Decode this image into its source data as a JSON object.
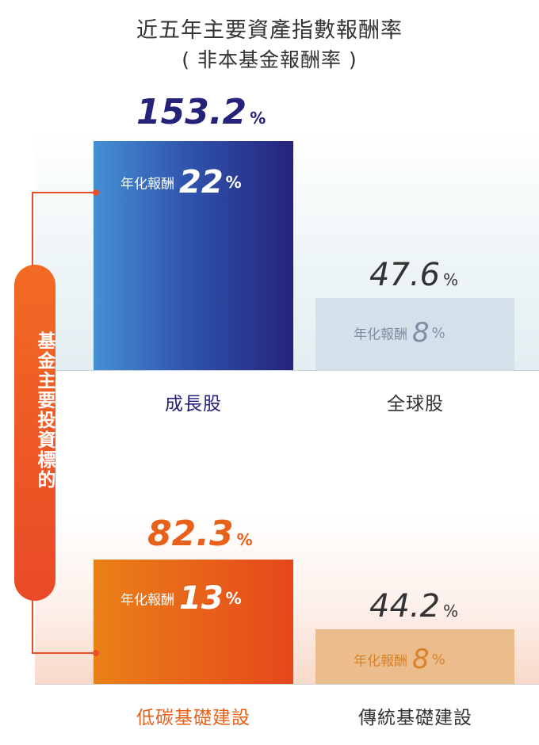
{
  "title": "近五年主要資產指數報酬率",
  "subtitle": "( 非本基金報酬率 )",
  "side_label": "基金主要投資標的",
  "annual_label": "年化報酬",
  "percent_sign": "%",
  "colors": {
    "navy": "#25227a",
    "orange": "#e8611a",
    "gray": "#333333",
    "slate": "#7d8fa5",
    "amber": "#d88228"
  },
  "chart_data": {
    "type": "bar",
    "categories": [
      "成長股",
      "全球股",
      "低碳基礎建設",
      "傳統基礎建設"
    ],
    "series": [
      {
        "values": [
          153.2,
          47.6,
          82.3,
          44.2
        ]
      },
      {
        "name": "年化報酬",
        "values": [
          22,
          8,
          13,
          8
        ]
      }
    ],
    "groups": [
      {
        "categories": [
          "成長股",
          "全球股"
        ],
        "total_return": [
          "153.2",
          "47.6"
        ],
        "annual_return": [
          "22",
          "8"
        ]
      },
      {
        "categories": [
          "低碳基礎建設",
          "傳統基礎建設"
        ],
        "total_return": [
          "82.3",
          "44.2"
        ],
        "annual_return": [
          "13",
          "8"
        ]
      }
    ],
    "title": "近五年主要資產指數報酬率",
    "xlabel": "",
    "ylabel": ""
  }
}
